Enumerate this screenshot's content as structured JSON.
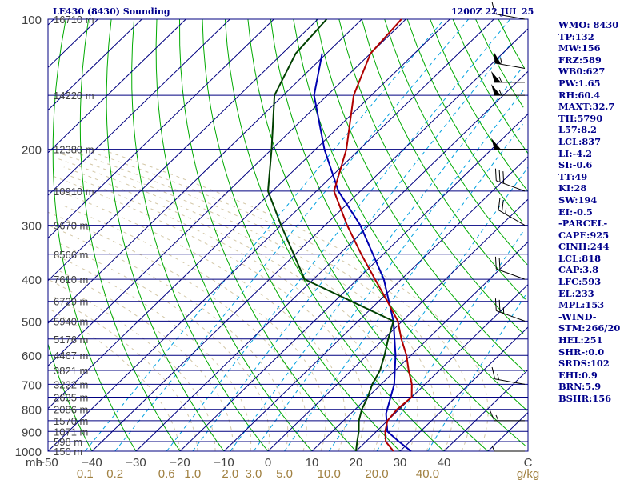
{
  "header": {
    "title_left": "LE430 (8430) Sounding",
    "title_right": "1200Z 22 JUL 25"
  },
  "stats": [
    "WMO: 8430",
    "TP:132",
    "MW:156",
    "FRZ:589",
    "WB0:627",
    "PW:1.65",
    "RH:60.4",
    "MAXT:32.7",
    "TH:5790",
    "L57:8.2",
    "LCL:837",
    "LI:-4.2",
    "SI:-0.6",
    "TT:49",
    "KI:28",
    "SW:194",
    "EI:-0.5",
    "-PARCEL-",
    "CAPE:925",
    "CINH:244",
    "LCL:818",
    "CAP:3.8",
    "LFC:593",
    "EL:233",
    "MPL:153",
    "-WIND-",
    "STM:266/20",
    "HEL:251",
    "SHR-:0.0",
    "SRDS:102",
    "EHI:0.9",
    "BRN:5.9",
    "BSHR:156"
  ],
  "colors": {
    "isobar": "#000080",
    "isotherm": "#000080",
    "dry_adiabat": "#00aa00",
    "moist_adiabat": "#d4c8a8",
    "mixing_ratio": "#00a0e0",
    "temperature": "#b00000",
    "dewpoint": "#004000",
    "parcel": "#0000b0",
    "axis_text": "#404040",
    "mixing_text": "#a08040"
  },
  "chart_data": {
    "type": "skew-t",
    "title": "LE430 (8430) Sounding",
    "pressure_levels": [
      100,
      200,
      300,
      400,
      500,
      600,
      700,
      800,
      900,
      1000
    ],
    "pressure_unit": "mb",
    "height_labels": [
      {
        "p": 100,
        "label": "16710 m"
      },
      {
        "p": 150,
        "label": "14220 m"
      },
      {
        "p": 200,
        "label": "12380 m"
      },
      {
        "p": 250,
        "label": "10910 m"
      },
      {
        "p": 300,
        "label": "9670 m"
      },
      {
        "p": 350,
        "label": "8566 m"
      },
      {
        "p": 400,
        "label": "7610 m"
      },
      {
        "p": 450,
        "label": "6729 m"
      },
      {
        "p": 500,
        "label": "5940 m"
      },
      {
        "p": 550,
        "label": "5176 m"
      },
      {
        "p": 600,
        "label": "4467 m"
      },
      {
        "p": 650,
        "label": "3821 m"
      },
      {
        "p": 700,
        "label": "3222 m"
      },
      {
        "p": 750,
        "label": "2635 m"
      },
      {
        "p": 800,
        "label": "2086 m"
      },
      {
        "p": 850,
        "label": "1570 m"
      },
      {
        "p": 900,
        "label": "1071 m"
      },
      {
        "p": 950,
        "label": "598 m"
      },
      {
        "p": 1000,
        "label": "150 m"
      }
    ],
    "temperature_ticks": [
      -50,
      -40,
      -30,
      -20,
      -10,
      0,
      10,
      20,
      30,
      40
    ],
    "mixing_ratio_ticks": [
      0.1,
      0.2,
      0.6,
      1.0,
      2.0,
      3.0,
      5.0,
      10.0,
      20.0,
      40.0
    ],
    "mixing_ratio_tick_labels": [
      "0.1",
      "0.2",
      "0.6",
      "1.0",
      "2.0",
      "3.0",
      "5.0",
      "10.0",
      "20.0",
      "40.0"
    ],
    "mixing_ratio_unit": "g/kg",
    "temperature_unit": "C",
    "temperature_profile": [
      {
        "p": 1000,
        "t": 28.5
      },
      {
        "p": 950,
        "t": 24.5
      },
      {
        "p": 900,
        "t": 22.0
      },
      {
        "p": 850,
        "t": 20.0
      },
      {
        "p": 800,
        "t": 19.5
      },
      {
        "p": 750,
        "t": 20.0
      },
      {
        "p": 700,
        "t": 17.0
      },
      {
        "p": 650,
        "t": 13.0
      },
      {
        "p": 600,
        "t": 9.0
      },
      {
        "p": 550,
        "t": 4.0
      },
      {
        "p": 500,
        "t": -1.0
      },
      {
        "p": 450,
        "t": -8.0
      },
      {
        "p": 400,
        "t": -16.0
      },
      {
        "p": 350,
        "t": -25.0
      },
      {
        "p": 300,
        "t": -35.0
      },
      {
        "p": 250,
        "t": -46.0
      },
      {
        "p": 200,
        "t": -53.0
      },
      {
        "p": 150,
        "t": -64.0
      },
      {
        "p": 120,
        "t": -70.0
      },
      {
        "p": 100,
        "t": -71.0
      }
    ],
    "dewpoint_profile": [
      {
        "p": 1000,
        "t": 20.0
      },
      {
        "p": 950,
        "t": 18.0
      },
      {
        "p": 900,
        "t": 16.0
      },
      {
        "p": 850,
        "t": 13.5
      },
      {
        "p": 800,
        "t": 11.5
      },
      {
        "p": 750,
        "t": 10.0
      },
      {
        "p": 700,
        "t": 8.0
      },
      {
        "p": 650,
        "t": 6.5
      },
      {
        "p": 600,
        "t": 4.0
      },
      {
        "p": 550,
        "t": 1.0
      },
      {
        "p": 500,
        "t": -2.0
      },
      {
        "p": 400,
        "t": -32.0
      },
      {
        "p": 300,
        "t": -50.0
      },
      {
        "p": 250,
        "t": -61.0
      },
      {
        "p": 200,
        "t": -70.0
      },
      {
        "p": 150,
        "t": -82.0
      },
      {
        "p": 120,
        "t": -87.0
      },
      {
        "p": 100,
        "t": -88.0
      }
    ],
    "parcel_profile": [
      {
        "p": 1000,
        "t": 32.5
      },
      {
        "p": 950,
        "t": 27.5
      },
      {
        "p": 900,
        "t": 22.5
      },
      {
        "p": 818,
        "t": 18.0
      },
      {
        "p": 700,
        "t": 13.0
      },
      {
        "p": 600,
        "t": 6.5
      },
      {
        "p": 500,
        "t": -2.0
      },
      {
        "p": 400,
        "t": -14.0
      },
      {
        "p": 300,
        "t": -32.0
      },
      {
        "p": 250,
        "t": -45.0
      },
      {
        "p": 200,
        "t": -58.0
      },
      {
        "p": 150,
        "t": -73.0
      },
      {
        "p": 120,
        "t": -81.0
      }
    ],
    "wind_barbs": [
      {
        "p": 1000,
        "dir": 270,
        "spd": 5
      },
      {
        "p": 850,
        "dir": 270,
        "spd": 15
      },
      {
        "p": 700,
        "dir": 280,
        "spd": 15
      },
      {
        "p": 500,
        "dir": 290,
        "spd": 25
      },
      {
        "p": 400,
        "dir": 290,
        "spd": 20
      },
      {
        "p": 300,
        "dir": 300,
        "spd": 25
      },
      {
        "p": 250,
        "dir": 290,
        "spd": 30
      },
      {
        "p": 200,
        "dir": 270,
        "spd": 50
      },
      {
        "p": 150,
        "dir": 270,
        "spd": 55
      },
      {
        "p": 140,
        "dir": 270,
        "spd": 55
      },
      {
        "p": 130,
        "dir": 280,
        "spd": 55
      },
      {
        "p": 100,
        "dir": 280,
        "spd": 10
      }
    ]
  }
}
